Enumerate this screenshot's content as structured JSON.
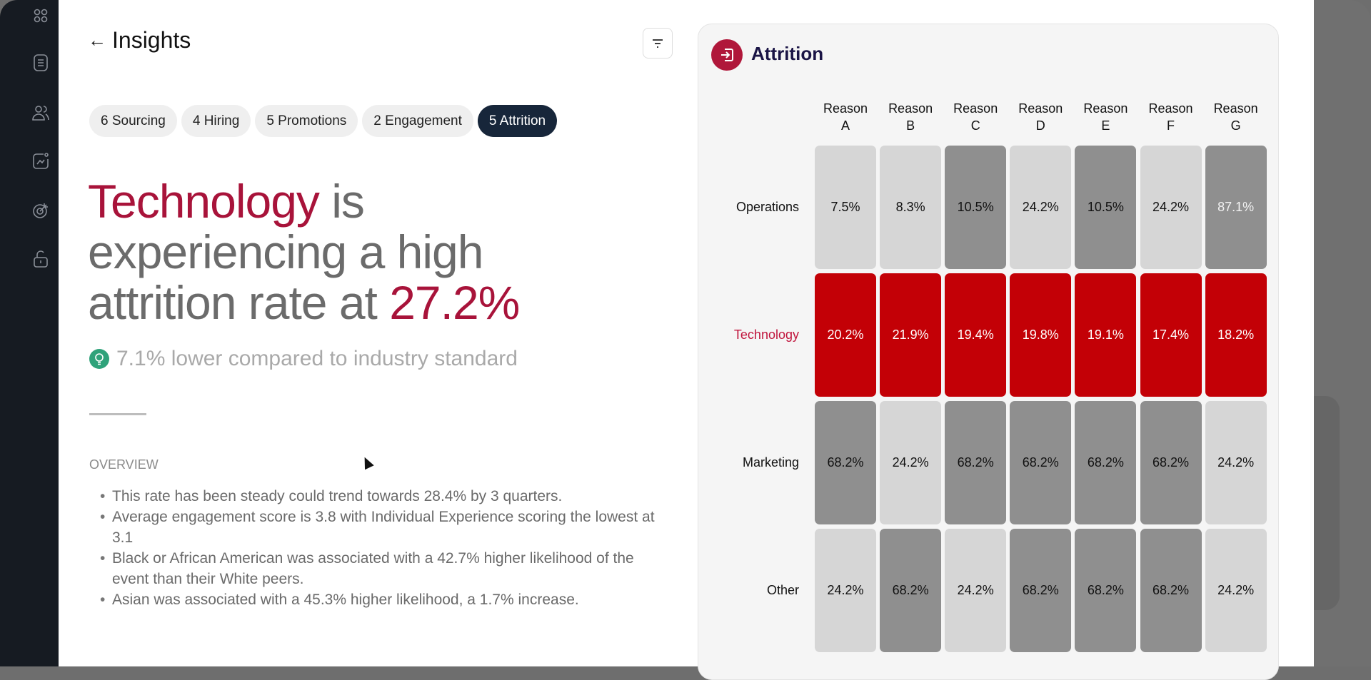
{
  "header": {
    "title": "Insights",
    "back_icon": "arrow-left-icon",
    "filter_icon": "filter-icon"
  },
  "sidebar": {
    "icons": [
      "apps-grid-icon",
      "document-icon",
      "users-icon",
      "analytics-icon",
      "target-icon",
      "unlock-icon"
    ]
  },
  "tabs": [
    {
      "label": "6 Sourcing"
    },
    {
      "label": "4 Hiring"
    },
    {
      "label": "5 Promotions"
    },
    {
      "label": "2 Engagement"
    },
    {
      "label": "5 Attrition",
      "active": true
    }
  ],
  "headline": {
    "dept": "Technology",
    "part1": " is experiencing a high attrition rate at ",
    "rate": "27.2%"
  },
  "comparison": "7.1% lower compared to industry standard",
  "overview": {
    "label": "OVERVIEW",
    "bullets": [
      "This rate has been steady could trend towards 28.4% by 3 quarters.",
      "Average engagement score is 3.8 with Individual Experience scoring the lowest at 3.1",
      "Black or African American was associated with a 42.7% higher likelihood of the event than their White peers.",
      "Asian was associated with a 45.3% higher likelihood, a 1.7% increase."
    ]
  },
  "colors": {
    "light": "#d6d6d6",
    "dark": "#8f8f8f",
    "highlight": "#c30006",
    "accent": "#a8133a"
  },
  "chart_data": {
    "type": "heatmap",
    "title": "Attrition",
    "columns": [
      [
        "Reason",
        "A"
      ],
      [
        "Reason",
        "B"
      ],
      [
        "Reason",
        "C"
      ],
      [
        "Reason",
        "D"
      ],
      [
        "Reason",
        "E"
      ],
      [
        "Reason",
        "F"
      ],
      [
        "Reason",
        "G"
      ]
    ],
    "rows": [
      {
        "label": "Operations",
        "values": [
          "7.5%",
          "8.3%",
          "10.5%",
          "24.2%",
          "10.5%",
          "24.2%",
          "87.1%"
        ],
        "levels": [
          "light",
          "light",
          "dark",
          "light",
          "dark",
          "light",
          "dark"
        ]
      },
      {
        "label": "Technology",
        "highlight": true,
        "values": [
          "20.2%",
          "21.9%",
          "19.4%",
          "19.8%",
          "19.1%",
          "17.4%",
          "18.2%"
        ],
        "levels": [
          "highlight",
          "highlight",
          "highlight",
          "highlight",
          "highlight",
          "highlight",
          "highlight"
        ]
      },
      {
        "label": "Marketing",
        "values": [
          "68.2%",
          "24.2%",
          "68.2%",
          "68.2%",
          "68.2%",
          "68.2%",
          "24.2%"
        ],
        "levels": [
          "dark",
          "light",
          "dark",
          "dark",
          "dark",
          "dark",
          "light"
        ]
      },
      {
        "label": "Other",
        "values": [
          "24.2%",
          "68.2%",
          "24.2%",
          "68.2%",
          "68.2%",
          "68.2%",
          "24.2%"
        ],
        "levels": [
          "light",
          "dark",
          "light",
          "dark",
          "dark",
          "dark",
          "light"
        ]
      }
    ]
  }
}
